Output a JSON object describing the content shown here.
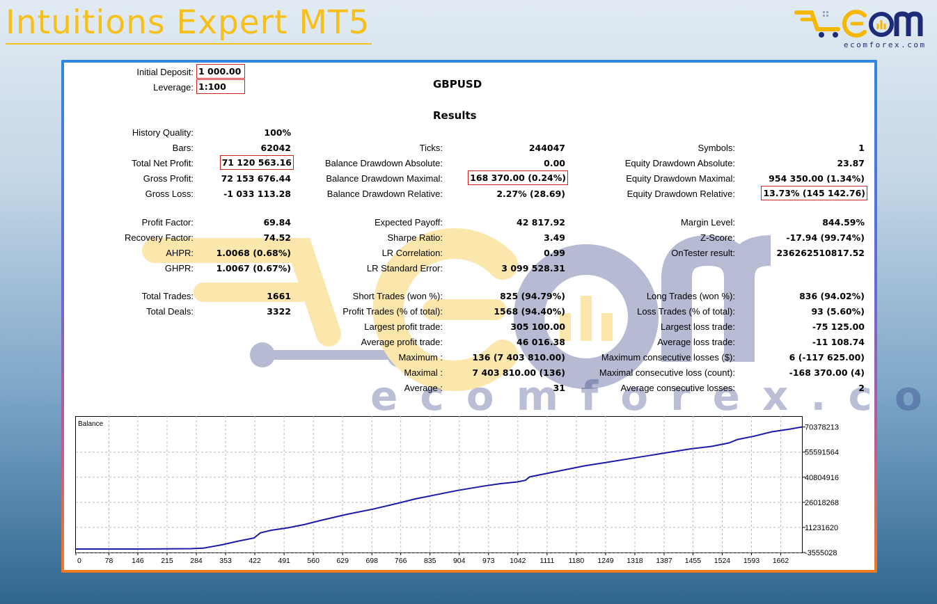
{
  "header": {
    "title": "Intuitions Expert MT5",
    "logo_text": "ECOM",
    "logo_sub": "ecomforex.com"
  },
  "watermark": {
    "text": "ecomforex.com"
  },
  "report": {
    "initial_deposit": {
      "label": "Initial Deposit:",
      "value": "1 000.00"
    },
    "leverage": {
      "label": "Leverage:",
      "value": "1:100"
    },
    "symbol": "GBPUSD",
    "results_heading": "Results",
    "col1": [
      {
        "label": "History Quality:",
        "value": "100%"
      },
      {
        "label": "Bars:",
        "value": "62042"
      },
      {
        "label": "Total Net Profit:",
        "value": "71 120 563.16",
        "highlight": true
      },
      {
        "label": "Gross Profit:",
        "value": "72 153 676.44"
      },
      {
        "label": "Gross Loss:",
        "value": "-1 033 113.28"
      },
      {
        "label": "Profit Factor:",
        "value": "69.84"
      },
      {
        "label": "Recovery Factor:",
        "value": "74.52"
      },
      {
        "label": "AHPR:",
        "value": "1.0068 (0.68%)"
      },
      {
        "label": "GHPR:",
        "value": "1.0067 (0.67%)"
      },
      {
        "label": "Total Trades:",
        "value": "1661"
      },
      {
        "label": "Total Deals:",
        "value": "3322"
      }
    ],
    "col2": [
      {
        "label": "Ticks:",
        "value": "244047"
      },
      {
        "label": "Balance Drawdown Absolute:",
        "value": "0.00"
      },
      {
        "label": "Balance Drawdown Maximal:",
        "value": "168 370.00 (0.24%)",
        "highlight": true
      },
      {
        "label": "Balance Drawdown Relative:",
        "value": "2.27% (28.69)"
      },
      {
        "label": "Expected Payoff:",
        "value": "42 817.92"
      },
      {
        "label": "Sharpe Ratio:",
        "value": "3.49"
      },
      {
        "label": "LR Correlation:",
        "value": "0.99"
      },
      {
        "label": "LR Standard Error:",
        "value": "3 099 528.31"
      },
      {
        "label": "Short Trades (won %):",
        "value": "825 (94.79%)"
      },
      {
        "label": "Profit Trades (% of total):",
        "value": "1568 (94.40%)"
      },
      {
        "label": "Largest profit trade:",
        "value": "305 100.00"
      },
      {
        "label": "Average profit trade:",
        "value": "46 016.38"
      },
      {
        "label": "Maximum :",
        "value": "136 (7 403 810.00)"
      },
      {
        "label": "Maximal :",
        "value": "7 403 810.00 (136)"
      },
      {
        "label": "Average :",
        "value": "31"
      }
    ],
    "col3": [
      {
        "label": "Symbols:",
        "value": "1"
      },
      {
        "label": "Equity Drawdown Absolute:",
        "value": "23.87"
      },
      {
        "label": "Equity Drawdown Maximal:",
        "value": "954 350.00 (1.34%)"
      },
      {
        "label": "Equity Drawdown Relative:",
        "value": "13.73% (145 142.76)",
        "highlight": true
      },
      {
        "label": "Margin Level:",
        "value": "844.59%"
      },
      {
        "label": "Z-Score:",
        "value": "-17.94 (99.74%)"
      },
      {
        "label": "OnTester result:",
        "value": "236262510817.52"
      },
      {
        "label": "Long Trades (won %):",
        "value": "836 (94.02%)"
      },
      {
        "label": "Loss Trades (% of total):",
        "value": "93 (5.60%)"
      },
      {
        "label": "Largest loss trade:",
        "value": "-75 125.00"
      },
      {
        "label": "Average loss trade:",
        "value": "-11 108.74"
      },
      {
        "label": "Maximum consecutive losses ($):",
        "value": "6 (-117 625.00)"
      },
      {
        "label": "Maximal consecutive loss (count):",
        "value": "-168 370.00 (4)"
      },
      {
        "label": "Average consecutive losses:",
        "value": "2"
      }
    ]
  },
  "chart_data": {
    "type": "line",
    "title": "Balance",
    "x_ticks": [
      "0",
      "78",
      "146",
      "215",
      "284",
      "353",
      "422",
      "491",
      "560",
      "629",
      "698",
      "766",
      "835",
      "904",
      "973",
      "1042",
      "1111",
      "1180",
      "1249",
      "1318",
      "1387",
      "1455",
      "1524",
      "1593",
      "1662"
    ],
    "y_ticks": [
      "70378213",
      "55591564",
      "40804916",
      "26018268",
      "11231620",
      "-3555028"
    ],
    "xlim": [
      0,
      1712
    ],
    "ylim": [
      -3555028,
      73500000
    ],
    "grid": true,
    "series": [
      {
        "color": "#1a1aa8",
        "x": [
          0,
          60,
          150,
          270,
          300,
          345,
          380,
          420,
          435,
          460,
          500,
          540,
          580,
          640,
          700,
          760,
          800,
          860,
          900,
          960,
          1000,
          1040,
          1060,
          1070,
          1100,
          1150,
          1200,
          1250,
          1300,
          1350,
          1400,
          1450,
          1500,
          1540,
          1560,
          1600,
          1640,
          1680,
          1712
        ],
        "y": [
          -1500000,
          -1500000,
          -1500000,
          -1300000,
          -1000000,
          1000000,
          3000000,
          5000000,
          8000000,
          9500000,
          11000000,
          13000000,
          15500000,
          19000000,
          22000000,
          25500000,
          28000000,
          31000000,
          33000000,
          35500000,
          37000000,
          38000000,
          39000000,
          41000000,
          42500000,
          45000000,
          47500000,
          49500000,
          51500000,
          53500000,
          55500000,
          57500000,
          59000000,
          61000000,
          63000000,
          65000000,
          67500000,
          69000000,
          70378213
        ]
      }
    ]
  }
}
